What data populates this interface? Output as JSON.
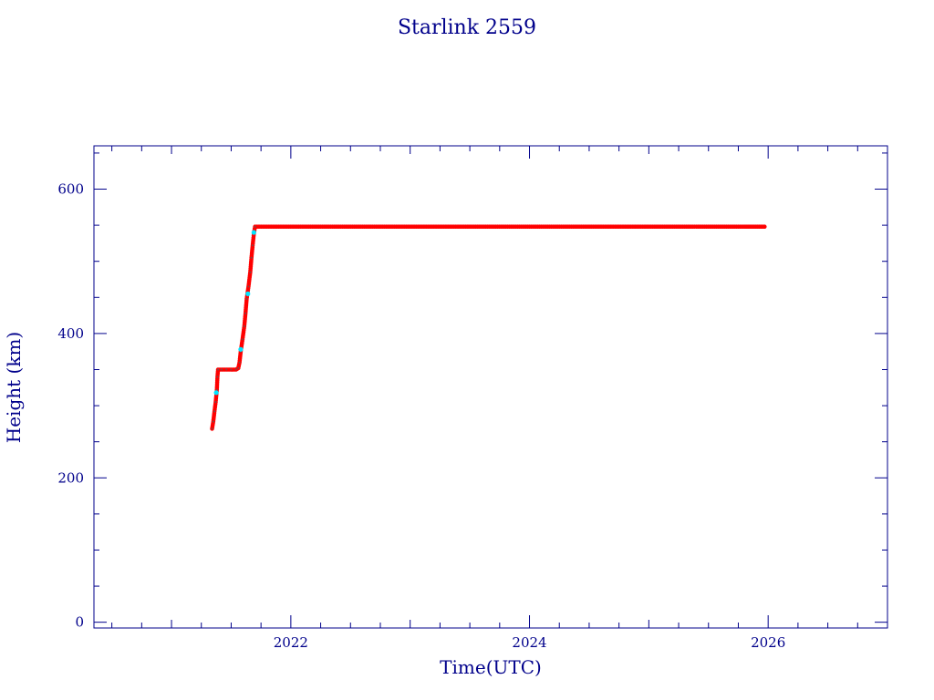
{
  "chart_data": {
    "type": "scatter",
    "title": "Starlink 2559",
    "xlabel": "Time(UTC)",
    "ylabel": "Height (km)",
    "xlim": [
      2020.35,
      2027.0
    ],
    "ylim": [
      -8,
      660
    ],
    "x_ticks": [
      2022,
      2024,
      2026
    ],
    "x_tick_labels": [
      "2022",
      "2024",
      "2026"
    ],
    "y_ticks": [
      0,
      200,
      400,
      600
    ],
    "y_tick_labels": [
      "0",
      "200",
      "400",
      "600"
    ],
    "grid": false,
    "colors": {
      "axis": "#00008b",
      "primary": "#ff0000",
      "secondary": "#00e5ff"
    },
    "series": [
      {
        "color": "#ff0000",
        "points": [
          [
            2021.34,
            268
          ],
          [
            2021.35,
            278
          ],
          [
            2021.36,
            292
          ],
          [
            2021.37,
            305
          ],
          [
            2021.38,
            322
          ],
          [
            2021.385,
            340
          ],
          [
            2021.39,
            350
          ],
          [
            2021.42,
            350
          ],
          [
            2021.46,
            350
          ],
          [
            2021.5,
            350
          ],
          [
            2021.54,
            350
          ],
          [
            2021.56,
            352
          ],
          [
            2021.57,
            360
          ],
          [
            2021.58,
            375
          ],
          [
            2021.595,
            392
          ],
          [
            2021.61,
            410
          ],
          [
            2021.62,
            428
          ],
          [
            2021.63,
            448
          ],
          [
            2021.645,
            465
          ],
          [
            2021.66,
            485
          ],
          [
            2021.67,
            505
          ],
          [
            2021.68,
            522
          ],
          [
            2021.69,
            538
          ],
          [
            2021.7,
            548
          ],
          [
            2021.9,
            548
          ],
          [
            2022.2,
            548
          ],
          [
            2022.5,
            548
          ],
          [
            2022.8,
            548
          ],
          [
            2023.1,
            548
          ],
          [
            2023.4,
            548
          ],
          [
            2023.7,
            548
          ],
          [
            2024.0,
            548
          ],
          [
            2024.3,
            548
          ],
          [
            2024.6,
            548
          ],
          [
            2024.9,
            548
          ],
          [
            2025.2,
            548
          ],
          [
            2025.5,
            548
          ],
          [
            2025.8,
            548
          ],
          [
            2025.97,
            548
          ]
        ]
      },
      {
        "color": "#00e5ff",
        "points": [
          [
            2021.375,
            318
          ],
          [
            2021.58,
            378
          ],
          [
            2021.64,
            455
          ],
          [
            2021.69,
            540
          ]
        ]
      }
    ]
  }
}
